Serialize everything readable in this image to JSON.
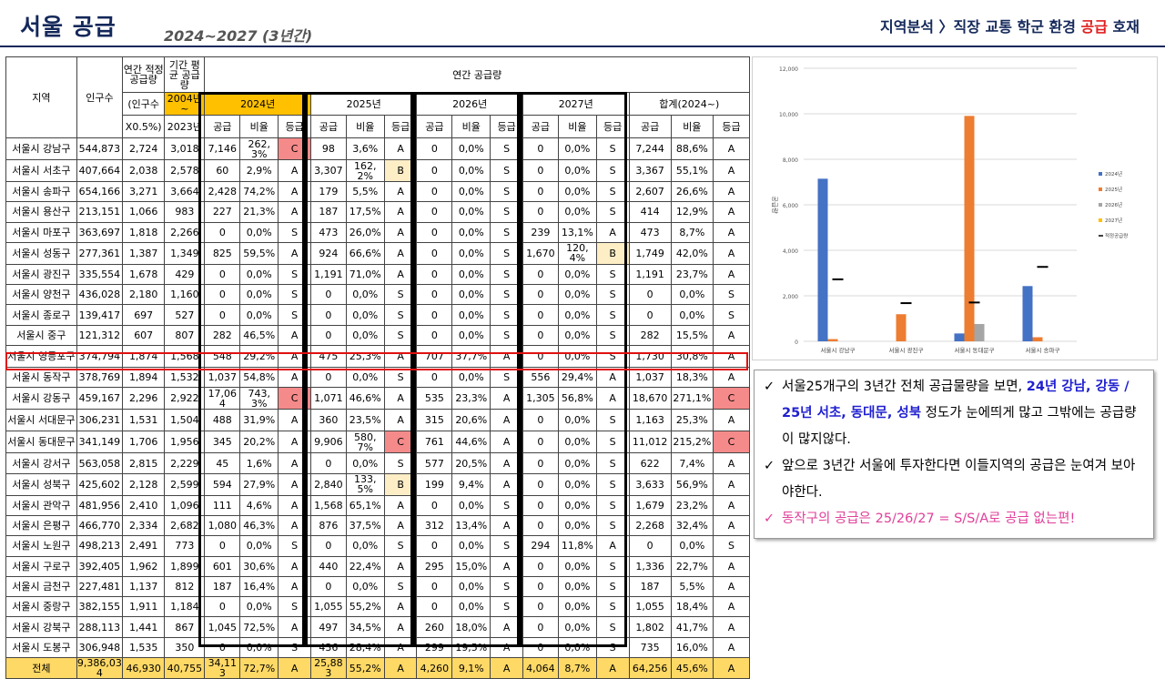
{
  "header": {
    "title": "서울 공급",
    "subtitle": "2024~2027 (3년간)",
    "nav": {
      "pre": "지역분석 〉직장 교통 학군 환경 ",
      "highlight": "공급",
      "post": " 호재"
    }
  },
  "table": {
    "head": {
      "region": "지역",
      "population": "인구수",
      "annual_proper": "연간 적정 공급량",
      "annual_proper_sub1": "(인구수",
      "annual_proper_sub2": "X0.5%)",
      "period_avg": "기간 평균 공급량",
      "period_avg_sub1": "2004년 ~",
      "period_avg_sub2": "2023년",
      "annual_supply": "연간 공급량",
      "y2024": "2024년",
      "y2025": "2025년",
      "y2026": "2026년",
      "y2027": "2027년",
      "total": "합계(2024~)",
      "col_supply": "공급",
      "col_ratio": "비율",
      "col_grade": "등급"
    },
    "rows": [
      [
        "서울시 강남구",
        "544,873",
        "2,724",
        "3,018",
        "7,146",
        "262,3%",
        "C",
        "98",
        "3,6%",
        "A",
        "0",
        "0,0%",
        "S",
        "0",
        "0,0%",
        "S",
        "7,244",
        "88,6%",
        "A"
      ],
      [
        "서울시 서초구",
        "407,664",
        "2,038",
        "2,578",
        "60",
        "2,9%",
        "A",
        "3,307",
        "162,2%",
        "B",
        "0",
        "0,0%",
        "S",
        "0",
        "0,0%",
        "S",
        "3,367",
        "55,1%",
        "A"
      ],
      [
        "서울시 송파구",
        "654,166",
        "3,271",
        "3,664",
        "2,428",
        "74,2%",
        "A",
        "179",
        "5,5%",
        "A",
        "0",
        "0,0%",
        "S",
        "0",
        "0,0%",
        "S",
        "2,607",
        "26,6%",
        "A"
      ],
      [
        "서울시 용산구",
        "213,151",
        "1,066",
        "983",
        "227",
        "21,3%",
        "A",
        "187",
        "17,5%",
        "A",
        "0",
        "0,0%",
        "S",
        "0",
        "0,0%",
        "S",
        "414",
        "12,9%",
        "A"
      ],
      [
        "서울시 마포구",
        "363,697",
        "1,818",
        "2,266",
        "0",
        "0,0%",
        "S",
        "473",
        "26,0%",
        "A",
        "0",
        "0,0%",
        "S",
        "239",
        "13,1%",
        "A",
        "473",
        "8,7%",
        "A"
      ],
      [
        "서울시 성동구",
        "277,361",
        "1,387",
        "1,349",
        "825",
        "59,5%",
        "A",
        "924",
        "66,6%",
        "A",
        "0",
        "0,0%",
        "S",
        "1,670",
        "120,4%",
        "B",
        "1,749",
        "42,0%",
        "A"
      ],
      [
        "서울시 광진구",
        "335,554",
        "1,678",
        "429",
        "0",
        "0,0%",
        "S",
        "1,191",
        "71,0%",
        "A",
        "0",
        "0,0%",
        "S",
        "0",
        "0,0%",
        "S",
        "1,191",
        "23,7%",
        "A"
      ],
      [
        "서울시 양천구",
        "436,028",
        "2,180",
        "1,160",
        "0",
        "0,0%",
        "S",
        "0",
        "0,0%",
        "S",
        "0",
        "0,0%",
        "S",
        "0",
        "0,0%",
        "S",
        "0",
        "0,0%",
        "S"
      ],
      [
        "서울시 종로구",
        "139,417",
        "697",
        "527",
        "0",
        "0,0%",
        "S",
        "0",
        "0,0%",
        "S",
        "0",
        "0,0%",
        "S",
        "0",
        "0,0%",
        "S",
        "0",
        "0,0%",
        "S"
      ],
      [
        "서울시 중구",
        "121,312",
        "607",
        "807",
        "282",
        "46,5%",
        "A",
        "0",
        "0,0%",
        "S",
        "0",
        "0,0%",
        "S",
        "0",
        "0,0%",
        "S",
        "282",
        "15,5%",
        "A"
      ],
      [
        "서울시 영등포구",
        "374,794",
        "1,874",
        "1,568",
        "548",
        "29,2%",
        "A",
        "475",
        "25,3%",
        "A",
        "707",
        "37,7%",
        "A",
        "0",
        "0,0%",
        "S",
        "1,730",
        "30,8%",
        "A"
      ],
      [
        "서울시 동작구",
        "378,769",
        "1,894",
        "1,532",
        "1,037",
        "54,8%",
        "A",
        "0",
        "0,0%",
        "S",
        "0",
        "0,0%",
        "S",
        "556",
        "29,4%",
        "A",
        "1,037",
        "18,3%",
        "A"
      ],
      [
        "서울시 강동구",
        "459,167",
        "2,296",
        "2,922",
        "17,064",
        "743,3%",
        "C",
        "1,071",
        "46,6%",
        "A",
        "535",
        "23,3%",
        "A",
        "1,305",
        "56,8%",
        "A",
        "18,670",
        "271,1%",
        "C"
      ],
      [
        "서울시 서대문구",
        "306,231",
        "1,531",
        "1,504",
        "488",
        "31,9%",
        "A",
        "360",
        "23,5%",
        "A",
        "315",
        "20,6%",
        "A",
        "0",
        "0,0%",
        "S",
        "1,163",
        "25,3%",
        "A"
      ],
      [
        "서울시 동대문구",
        "341,149",
        "1,706",
        "1,956",
        "345",
        "20,2%",
        "A",
        "9,906",
        "580,7%",
        "C",
        "761",
        "44,6%",
        "A",
        "0",
        "0,0%",
        "S",
        "11,012",
        "215,2%",
        "C"
      ],
      [
        "서울시 강서구",
        "563,058",
        "2,815",
        "2,229",
        "45",
        "1,6%",
        "A",
        "0",
        "0,0%",
        "S",
        "577",
        "20,5%",
        "A",
        "0",
        "0,0%",
        "S",
        "622",
        "7,4%",
        "A"
      ],
      [
        "서울시 성북구",
        "425,602",
        "2,128",
        "2,599",
        "594",
        "27,9%",
        "A",
        "2,840",
        "133,5%",
        "B",
        "199",
        "9,4%",
        "A",
        "0",
        "0,0%",
        "S",
        "3,633",
        "56,9%",
        "A"
      ],
      [
        "서울시 관악구",
        "481,956",
        "2,410",
        "1,096",
        "111",
        "4,6%",
        "A",
        "1,568",
        "65,1%",
        "A",
        "0",
        "0,0%",
        "S",
        "0",
        "0,0%",
        "S",
        "1,679",
        "23,2%",
        "A"
      ],
      [
        "서울시 은평구",
        "466,770",
        "2,334",
        "2,682",
        "1,080",
        "46,3%",
        "A",
        "876",
        "37,5%",
        "A",
        "312",
        "13,4%",
        "A",
        "0",
        "0,0%",
        "S",
        "2,268",
        "32,4%",
        "A"
      ],
      [
        "서울시 노원구",
        "498,213",
        "2,491",
        "773",
        "0",
        "0,0%",
        "S",
        "0",
        "0,0%",
        "S",
        "0",
        "0,0%",
        "S",
        "294",
        "11,8%",
        "A",
        "0",
        "0,0%",
        "S"
      ],
      [
        "서울시 구로구",
        "392,405",
        "1,962",
        "1,899",
        "601",
        "30,6%",
        "A",
        "440",
        "22,4%",
        "A",
        "295",
        "15,0%",
        "A",
        "0",
        "0,0%",
        "S",
        "1,336",
        "22,7%",
        "A"
      ],
      [
        "서울시 금천구",
        "227,481",
        "1,137",
        "812",
        "187",
        "16,4%",
        "A",
        "0",
        "0,0%",
        "S",
        "0",
        "0,0%",
        "S",
        "0",
        "0,0%",
        "S",
        "187",
        "5,5%",
        "A"
      ],
      [
        "서울시 중랑구",
        "382,155",
        "1,911",
        "1,184",
        "0",
        "0,0%",
        "S",
        "1,055",
        "55,2%",
        "A",
        "0",
        "0,0%",
        "S",
        "0",
        "0,0%",
        "S",
        "1,055",
        "18,4%",
        "A"
      ],
      [
        "서울시 강북구",
        "288,113",
        "1,441",
        "867",
        "1,045",
        "72,5%",
        "A",
        "497",
        "34,5%",
        "A",
        "260",
        "18,0%",
        "A",
        "0",
        "0,0%",
        "S",
        "1,802",
        "41,7%",
        "A"
      ],
      [
        "서울시 도봉구",
        "306,948",
        "1,535",
        "350",
        "0",
        "0,0%",
        "S",
        "436",
        "28,4%",
        "A",
        "299",
        "19,5%",
        "A",
        "0",
        "0,0%",
        "S",
        "735",
        "16,0%",
        "A"
      ]
    ],
    "total": [
      "전체",
      "9,386,034",
      "46,930",
      "40,755",
      "34,113",
      "72,7%",
      "A",
      "25,883",
      "55,2%",
      "A",
      "4,260",
      "9,1%",
      "A",
      "4,064",
      "8,7%",
      "A",
      "64,256",
      "45,6%",
      "A"
    ]
  },
  "chart_data": {
    "type": "bar",
    "title": "",
    "ylabel": "공급량",
    "ylim": [
      0,
      12000
    ],
    "yticks": [
      "0",
      "2,000",
      "4,000",
      "6,000",
      "8,000",
      "10,000",
      "12,000"
    ],
    "categories": [
      "서울시 강남구",
      "서울시 광진구",
      "서울시 동대문구",
      "서울시 송파구"
    ],
    "series": [
      {
        "name": "2024년",
        "color": "#4472c4",
        "values": [
          7146,
          0,
          345,
          2428
        ]
      },
      {
        "name": "2025년",
        "color": "#ed7d31",
        "values": [
          98,
          1191,
          9906,
          179
        ]
      },
      {
        "name": "2026년",
        "color": "#a5a5a5",
        "values": [
          0,
          0,
          761,
          0
        ]
      },
      {
        "name": "2027년",
        "color": "#ffc000",
        "values": [
          0,
          0,
          0,
          0
        ]
      }
    ],
    "marker_series": {
      "name": "적정공급량",
      "values": [
        2724,
        1678,
        1706,
        3271
      ]
    },
    "legend": "right"
  },
  "notes": {
    "n1_a": "서울25개구의 3년간 전체 공급물량을 보면, ",
    "n1_b": "24년 강남, 강동 / 25년 서초, 동대문, 성북",
    "n1_c": " 정도가 눈에띄게 많고 그밖에는 공급량이 많지않다.",
    "n2": "앞으로 3년간 서울에 투자한다면 이들지역의 공급은 눈여겨 보아야한다.",
    "n3": "동작구의 공급은 25/26/27 = S/S/A로 공급 없는편!",
    "check": "✓"
  }
}
